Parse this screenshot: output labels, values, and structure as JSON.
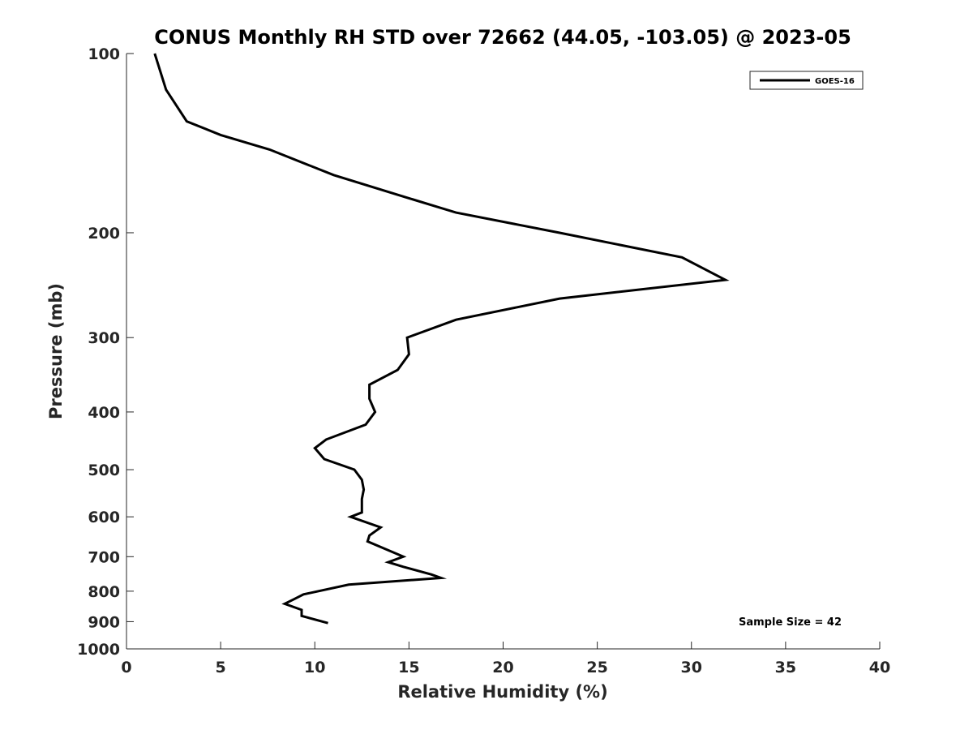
{
  "chart_data": {
    "type": "line",
    "title": "CONUS Monthly RH STD over 72662 (44.05, -103.05) @ 2023-05",
    "xlabel": "Relative Humidity (%)",
    "ylabel": "Pressure (mb)",
    "xlim": [
      0,
      40
    ],
    "ylim": [
      100,
      1000
    ],
    "y_scale": "log",
    "y_reversed": true,
    "grid": false,
    "legend_position": "top-right",
    "x_ticks": [
      "0",
      "5",
      "10",
      "15",
      "20",
      "25",
      "30",
      "35",
      "40"
    ],
    "y_ticks": [
      "100",
      "200",
      "300",
      "400",
      "500",
      "600",
      "700",
      "800",
      "900",
      "1000"
    ],
    "annotation": "Sample Size = 42",
    "series": [
      {
        "name": "GOES-16",
        "color": "#000000",
        "points": [
          [
            1.5,
            100
          ],
          [
            2.1,
            115
          ],
          [
            3.2,
            130
          ],
          [
            5.0,
            137
          ],
          [
            7.6,
            145
          ],
          [
            11.0,
            160
          ],
          [
            15.0,
            175
          ],
          [
            17.5,
            185
          ],
          [
            23.0,
            200
          ],
          [
            29.5,
            220
          ],
          [
            31.8,
            240
          ],
          [
            23.0,
            258
          ],
          [
            17.5,
            280
          ],
          [
            14.9,
            300
          ],
          [
            15.0,
            320
          ],
          [
            14.4,
            340
          ],
          [
            12.9,
            360
          ],
          [
            12.9,
            380
          ],
          [
            13.2,
            400
          ],
          [
            12.7,
            420
          ],
          [
            10.6,
            445
          ],
          [
            10.0,
            460
          ],
          [
            10.5,
            480
          ],
          [
            12.1,
            500
          ],
          [
            12.5,
            520
          ],
          [
            12.6,
            540
          ],
          [
            12.5,
            560
          ],
          [
            12.5,
            590
          ],
          [
            11.9,
            600
          ],
          [
            13.5,
            625
          ],
          [
            12.9,
            645
          ],
          [
            12.8,
            660
          ],
          [
            14.7,
            700
          ],
          [
            13.9,
            715
          ],
          [
            14.7,
            728
          ],
          [
            16.2,
            750
          ],
          [
            16.7,
            760
          ],
          [
            11.8,
            780
          ],
          [
            9.4,
            810
          ],
          [
            8.9,
            825
          ],
          [
            8.4,
            840
          ],
          [
            9.3,
            860
          ],
          [
            9.3,
            880
          ],
          [
            10.7,
            905
          ]
        ]
      }
    ]
  }
}
